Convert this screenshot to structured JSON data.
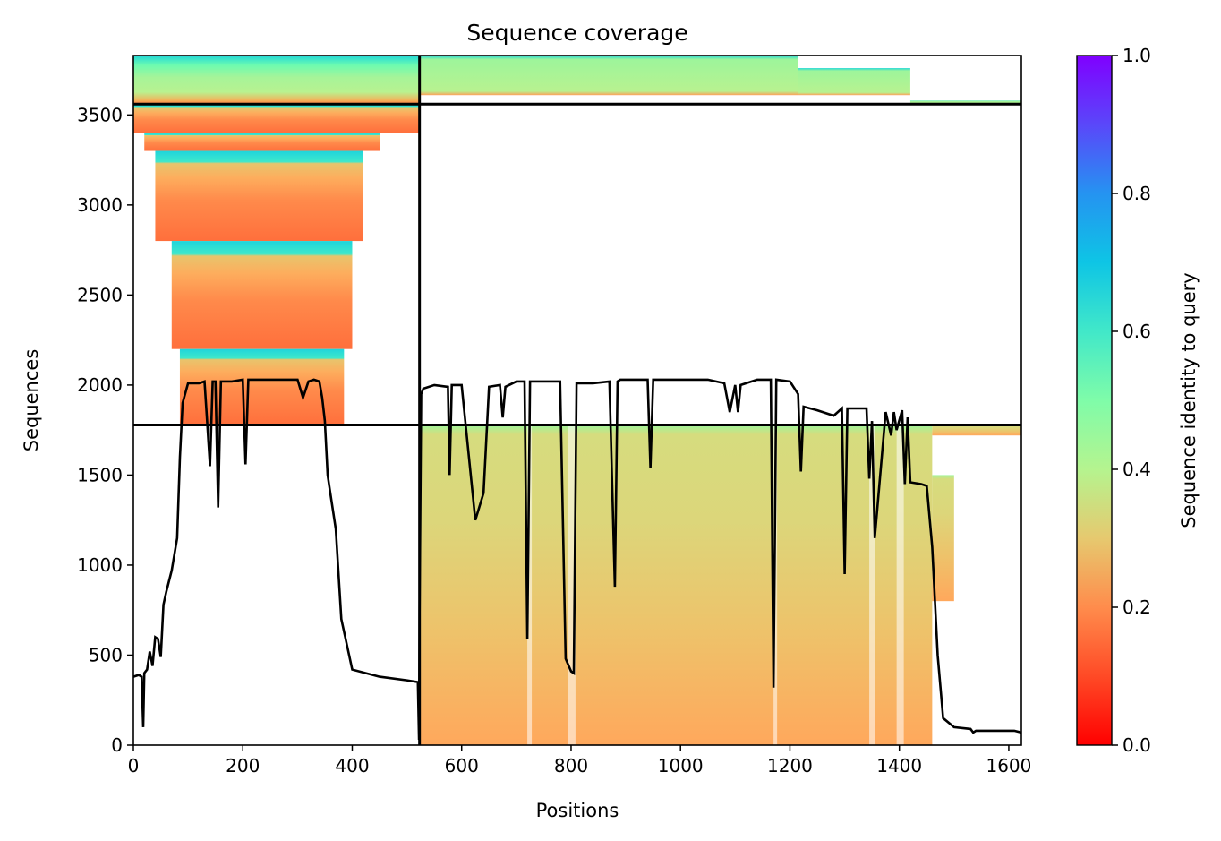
{
  "chart_data": {
    "type": "heatmap",
    "title": "Sequence coverage",
    "xlabel": "Positions",
    "ylabel": "Sequences",
    "colorbar_label": "Sequence identity to query",
    "colormap": "rainbow_r",
    "xlim": [
      0,
      1623
    ],
    "ylim": [
      0,
      3830
    ],
    "xticks": [
      0,
      200,
      400,
      600,
      800,
      1000,
      1200,
      1400,
      1600
    ],
    "yticks": [
      0,
      500,
      1000,
      1500,
      2000,
      2500,
      3000,
      3500
    ],
    "colorbar_ticks": [
      0.0,
      0.2,
      0.4,
      0.6,
      0.8,
      1.0
    ],
    "colorbar_tick_labels": [
      "0.0",
      "0.2",
      "0.4",
      "0.6",
      "0.8",
      "1.0"
    ],
    "grid": false,
    "divider_x": [
      523
    ],
    "divider_y": [
      1778,
      3560
    ],
    "blocks": [
      {
        "x": [
          0,
          523
        ],
        "y": [
          3560,
          3830
        ],
        "description": "top-left group",
        "identity_range": [
          0.2,
          0.7
        ]
      },
      {
        "x": [
          523,
          1623
        ],
        "y": [
          3560,
          3830
        ],
        "description": "top-right group",
        "identity_range": [
          0.25,
          0.7
        ]
      },
      {
        "x": [
          0,
          523
        ],
        "y": [
          1778,
          3560
        ],
        "description": "middle-left group",
        "identity_range": [
          0.17,
          0.65
        ]
      },
      {
        "x": [
          523,
          1623
        ],
        "y": [
          0,
          1778
        ],
        "description": "bottom-right group",
        "identity_range": [
          0.25,
          0.45
        ]
      }
    ],
    "series": [
      {
        "type": "line",
        "color": "#000000",
        "x": [
          0,
          10,
          15,
          18,
          20,
          25,
          30,
          35,
          40,
          45,
          50,
          55,
          60,
          70,
          80,
          85,
          90,
          100,
          120,
          130,
          140,
          145,
          150,
          155,
          160,
          180,
          200,
          205,
          210,
          230,
          250,
          280,
          300,
          310,
          320,
          330,
          340,
          345,
          350,
          355,
          360,
          370,
          380,
          400,
          450,
          500,
          520,
          522,
          523,
          526,
          530,
          550,
          575,
          578,
          582,
          600,
          625,
          630,
          640,
          650,
          670,
          675,
          680,
          700,
          715,
          720,
          725,
          740,
          780,
          790,
          800,
          805,
          810,
          840,
          870,
          880,
          885,
          890,
          940,
          945,
          950,
          1000,
          1050,
          1080,
          1090,
          1100,
          1105,
          1110,
          1140,
          1165,
          1170,
          1175,
          1200,
          1215,
          1220,
          1225,
          1250,
          1280,
          1295,
          1300,
          1305,
          1340,
          1345,
          1350,
          1355,
          1375,
          1385,
          1390,
          1395,
          1405,
          1410,
          1415,
          1420,
          1440,
          1450,
          1460,
          1470,
          1480,
          1500,
          1530,
          1535,
          1540,
          1580,
          1610,
          1623
        ],
        "y": [
          380,
          390,
          380,
          100,
          400,
          420,
          520,
          440,
          600,
          590,
          490,
          780,
          850,
          970,
          1150,
          1600,
          1900,
          2010,
          2010,
          2020,
          1550,
          2020,
          2020,
          1320,
          2020,
          2020,
          2030,
          1560,
          2030,
          2030,
          2030,
          2030,
          2030,
          1930,
          2020,
          2030,
          2020,
          1930,
          1800,
          1500,
          1400,
          1200,
          700,
          420,
          380,
          360,
          350,
          30,
          740,
          1950,
          1980,
          2000,
          1990,
          1500,
          2000,
          2000,
          1250,
          1300,
          1400,
          1990,
          2000,
          1820,
          1990,
          2020,
          2020,
          590,
          2020,
          2020,
          2020,
          480,
          410,
          400,
          2010,
          2010,
          2020,
          880,
          2020,
          2030,
          2030,
          1540,
          2030,
          2030,
          2030,
          2010,
          1850,
          2000,
          1850,
          2000,
          2030,
          2030,
          320,
          2030,
          2020,
          1950,
          1520,
          1880,
          1860,
          1830,
          1870,
          950,
          1870,
          1870,
          1480,
          1800,
          1150,
          1850,
          1720,
          1850,
          1750,
          1860,
          1450,
          1820,
          1460,
          1450,
          1440,
          1100,
          500,
          150,
          100,
          90,
          70,
          80,
          80,
          80,
          70
        ]
      }
    ]
  }
}
